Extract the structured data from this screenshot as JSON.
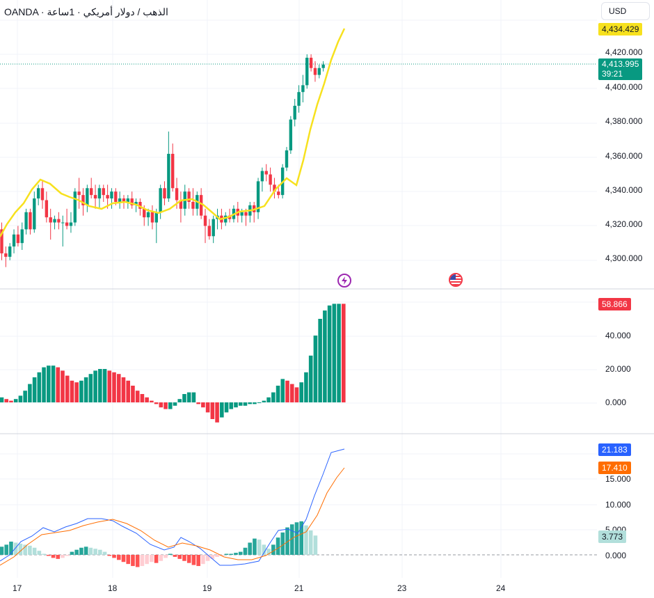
{
  "header": {
    "symbol_title": "OANDA · الذهب / دولار أمريكي · 1ساعة",
    "currency_button": "USD"
  },
  "colors": {
    "up": "#089981",
    "down": "#f23645",
    "ma_line": "#f7e11e",
    "macd_line": "#2962ff",
    "signal_line": "#ff6d00",
    "hist_up_strong": "#26a69a",
    "hist_up_weak": "#b2dfdb",
    "hist_down_strong": "#ff5252",
    "hist_down_weak": "#ffcdd2"
  },
  "price_pane": {
    "ticks": [
      "4,420.000",
      "4,400.000",
      "4,380.000",
      "4,360.000",
      "4,340.000",
      "4,320.000",
      "4,300.000"
    ],
    "ma_value": "4,434.429",
    "last_price": "4,413.995",
    "countdown": "39:21"
  },
  "oscillator_pane": {
    "ticks": [
      "40.000",
      "20.000",
      "0.000"
    ],
    "current_value": "58.866"
  },
  "macd_pane": {
    "ticks": [
      "15.000",
      "10.000",
      "5.000",
      "0.000"
    ],
    "macd_value": "21.183",
    "signal_value": "17.410",
    "hist_value": "3.773"
  },
  "x_axis": {
    "labels": [
      "17",
      "18",
      "19",
      "21",
      "23",
      "24"
    ]
  },
  "events": [
    {
      "name": "lightning-event-icon",
      "color": "#9c27b0"
    },
    {
      "name": "us-flag-event-icon",
      "color": "#f23645"
    }
  ]
}
